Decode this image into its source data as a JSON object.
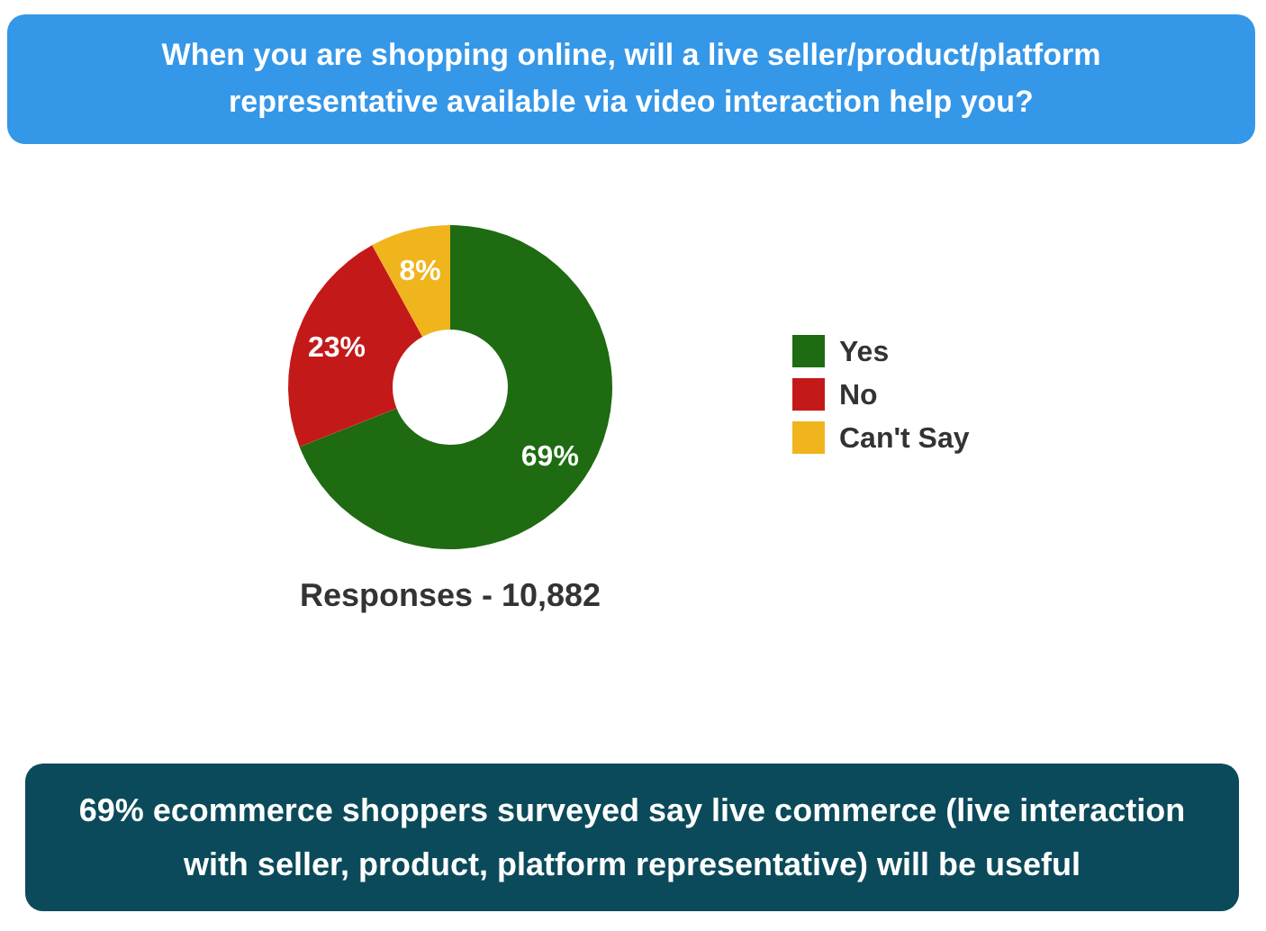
{
  "chart_data": {
    "type": "donut",
    "title": "When you are shopping online, will a live seller/product/platform representative available via video interaction help you?",
    "categories": [
      "Yes",
      "No",
      "Can't Say"
    ],
    "values": [
      69,
      23,
      8
    ],
    "colors": [
      "#1e6b12",
      "#c41919",
      "#f0b41c"
    ],
    "value_labels": [
      "69%",
      "23%",
      "8%"
    ],
    "legend": "right",
    "annotations": [
      "Responses - 10,882",
      "69% ecommerce shoppers surveyed say live commerce (live interaction with seller, product, platform representative) will be useful"
    ]
  }
}
